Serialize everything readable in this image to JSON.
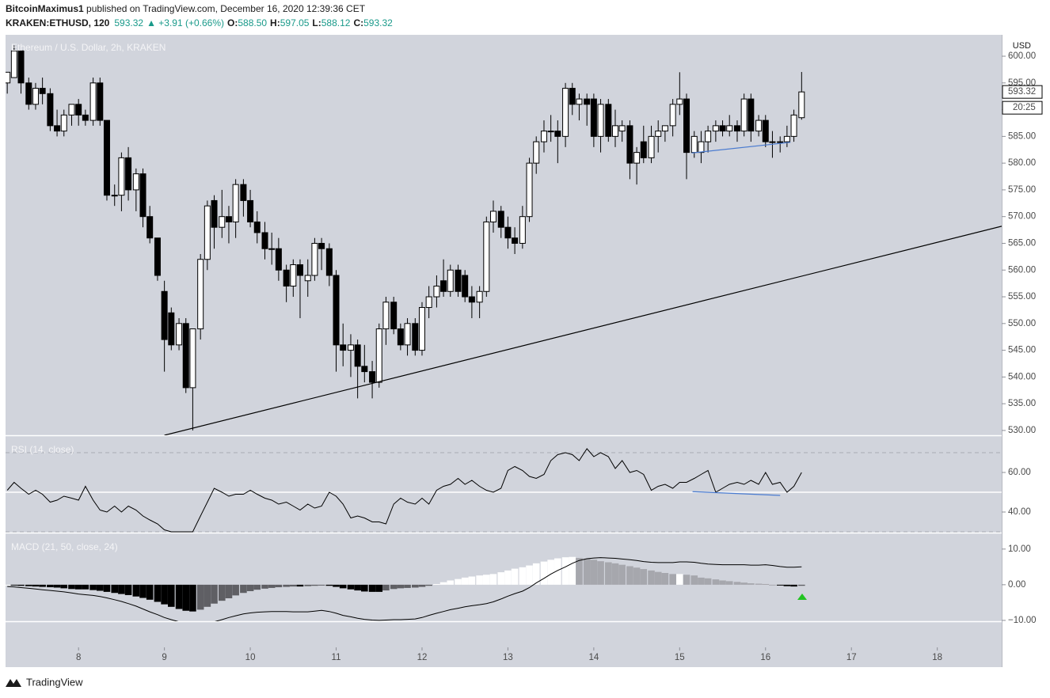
{
  "header": {
    "author": "BitcoinMaximus1",
    "published": " published on TradingView.com, December 16, 2020 12:39:36 CET",
    "symbol": "KRAKEN:ETHUSD, 120",
    "price": "593.32",
    "change": "▲ +3.91 (+0.66%)",
    "fields": [
      {
        "label": "O:",
        "value": "588.50"
      },
      {
        "label": "H:",
        "value": "597.05"
      },
      {
        "label": "L:",
        "value": "588.12"
      },
      {
        "label": "C:",
        "value": "593.32"
      }
    ]
  },
  "footer": {
    "brand": "TradingView"
  },
  "chart_data": {
    "type": "candlestick",
    "title": "Ethereum / U.S. Dollar, 2h, KRAKEN",
    "y_unit": "USD",
    "x": [
      7.17,
      7.25,
      7.33,
      7.42,
      7.5,
      7.58,
      7.67,
      7.75,
      7.83,
      7.92,
      8,
      8.08,
      8.17,
      8.25,
      8.33,
      8.42,
      8.5,
      8.58,
      8.67,
      8.75,
      8.83,
      8.92,
      9,
      9.08,
      9.17,
      9.25,
      9.33,
      9.42,
      9.5,
      9.58,
      9.67,
      9.75,
      9.83,
      9.92,
      10,
      10.08,
      10.17,
      10.25,
      10.33,
      10.42,
      10.5,
      10.58,
      10.67,
      10.75,
      10.83,
      10.92,
      11,
      11.08,
      11.17,
      11.25,
      11.33,
      11.42,
      11.5,
      11.58,
      11.67,
      11.75,
      11.83,
      11.92,
      12,
      12.08,
      12.17,
      12.25,
      12.33,
      12.42,
      12.5,
      12.58,
      12.67,
      12.75,
      12.83,
      12.92,
      13,
      13.08,
      13.17,
      13.25,
      13.33,
      13.42,
      13.5,
      13.58,
      13.67,
      13.75,
      13.83,
      13.92,
      14,
      14.08,
      14.17,
      14.25,
      14.33,
      14.42,
      14.5,
      14.58,
      14.67,
      14.75,
      14.83,
      14.92,
      15,
      15.08,
      15.17,
      15.25,
      15.33,
      15.42,
      15.5,
      15.58,
      15.67,
      15.75,
      15.83,
      15.92,
      16,
      16.08,
      16.17,
      16.25,
      16.33,
      16.42
    ],
    "open": [
      595,
      596,
      601,
      595,
      591,
      594,
      593,
      587,
      586,
      589,
      591,
      589,
      588,
      595,
      588,
      574,
      574,
      581,
      575,
      578,
      570,
      566,
      556,
      552,
      546,
      550,
      538,
      549,
      562,
      573,
      568,
      570,
      569,
      576,
      573,
      569,
      567,
      564,
      564,
      560,
      557,
      561,
      558,
      559,
      565,
      564,
      559,
      546,
      545,
      546,
      542,
      541,
      539,
      549,
      554,
      549,
      546,
      550,
      545,
      553,
      555,
      558,
      556,
      560,
      559,
      555,
      554,
      556,
      569,
      571,
      568,
      566,
      565,
      570,
      580,
      584,
      586,
      586,
      585,
      594,
      591,
      592,
      592,
      585,
      591,
      585,
      586,
      587,
      580,
      584,
      581,
      585,
      586,
      587,
      591,
      592,
      582,
      582,
      584,
      586,
      587,
      586,
      587,
      586,
      592,
      586,
      588,
      584,
      584,
      584,
      585,
      588.5
    ],
    "high": [
      597,
      602,
      601,
      596,
      595,
      596,
      594,
      590,
      590,
      591,
      592,
      590,
      596,
      596,
      588,
      576,
      582,
      583,
      579,
      579,
      572,
      566,
      558,
      553,
      551,
      551,
      549,
      563,
      573,
      574,
      575,
      572,
      577,
      577,
      575,
      571,
      569,
      567,
      566,
      561,
      562,
      562,
      562,
      566,
      566,
      565,
      560,
      550,
      548,
      547,
      546,
      543,
      550,
      555,
      555,
      550,
      551,
      551,
      554,
      557,
      559,
      562,
      561,
      561,
      560,
      557,
      557,
      570,
      573,
      572,
      570,
      568,
      572,
      581,
      585,
      588,
      589,
      588,
      595,
      595,
      593,
      593,
      593,
      592,
      592,
      590,
      588,
      588,
      583,
      587,
      587,
      588,
      587,
      592,
      597,
      593,
      586,
      586,
      587,
      588,
      588,
      589,
      588,
      593,
      593,
      589,
      589,
      586,
      585,
      587,
      590,
      597.05
    ],
    "low": [
      593,
      596,
      593,
      590,
      590,
      591,
      586,
      585,
      585,
      587,
      587,
      587,
      587,
      587,
      573,
      572,
      571,
      573,
      571,
      568,
      565,
      558,
      541,
      545,
      545,
      537,
      530,
      547,
      560,
      564,
      566,
      565,
      566,
      570,
      568,
      565,
      562,
      561,
      558,
      554,
      555,
      551,
      555,
      558,
      560,
      557,
      541,
      542,
      540,
      536,
      539,
      536,
      538,
      546,
      548,
      545,
      544,
      544,
      544,
      551,
      553,
      555,
      555,
      555,
      554,
      551,
      551,
      555,
      567,
      566,
      564,
      563,
      564,
      569,
      578,
      582,
      584,
      580,
      583,
      589,
      588,
      587,
      583,
      582,
      584,
      583,
      584,
      577,
      576,
      580,
      580,
      582,
      584,
      585,
      589,
      577,
      581,
      580,
      582,
      584,
      585,
      585,
      584,
      585,
      584,
      585,
      583,
      581,
      582,
      583,
      584,
      588.12
    ],
    "close": [
      597,
      601,
      595,
      591,
      594,
      593,
      587,
      586,
      589,
      591,
      589,
      588,
      595,
      588,
      574,
      574,
      581,
      575,
      578,
      570,
      566,
      559,
      547,
      546,
      550,
      538,
      549,
      562,
      572,
      568,
      570,
      569,
      576,
      573,
      569,
      567,
      564,
      564,
      560,
      557,
      561,
      559,
      559,
      565,
      564,
      559,
      546,
      545,
      546,
      542,
      541,
      539,
      549,
      554,
      549,
      546,
      550,
      545,
      553,
      555,
      557,
      556,
      560,
      556,
      555,
      554,
      556,
      569,
      571,
      568,
      566,
      565,
      570,
      580,
      584,
      586,
      586,
      585,
      594,
      591,
      592,
      591,
      585,
      591,
      585,
      587,
      587,
      580,
      582,
      581,
      585,
      586,
      587,
      591,
      592,
      582,
      585,
      584,
      586,
      587,
      586,
      587,
      586,
      592,
      586,
      588,
      584,
      584,
      584,
      585,
      589,
      593.32
    ],
    "up_color": "#ffffff",
    "down_color": "#000000",
    "xlim": [
      7.15,
      18.75
    ],
    "xticks": [
      8,
      9,
      10,
      11,
      12,
      13,
      14,
      15,
      16,
      17,
      18
    ],
    "ylim": [
      529.1,
      604
    ],
    "yticks": [
      {
        "value": 530,
        "label": "530.00"
      },
      {
        "value": 535,
        "label": "535.00"
      },
      {
        "value": 540,
        "label": "540.00"
      },
      {
        "value": 545,
        "label": "545.00"
      },
      {
        "value": 550,
        "label": "550.00"
      },
      {
        "value": 555,
        "label": "555.00"
      },
      {
        "value": 560,
        "label": "560.00"
      },
      {
        "value": 565,
        "label": "565.00"
      },
      {
        "value": 570,
        "label": "570.00"
      },
      {
        "value": 575,
        "label": "575.00"
      },
      {
        "value": 580,
        "label": "580.00"
      },
      {
        "value": 585,
        "label": "585.00"
      },
      {
        "value": 590,
        "label": "590.00"
      },
      {
        "value": 595,
        "label": "595.00"
      },
      {
        "value": 600,
        "label": "600.00"
      }
    ],
    "grid": false,
    "last_price": {
      "value": 593.32,
      "label": "593.32"
    },
    "countdown": "20:25",
    "trendlines": [
      {
        "x": [
          9.0,
          18.75
        ],
        "y": [
          529.1,
          568.2
        ],
        "color": "#000000"
      },
      {
        "x": [
          15.14,
          16.29
        ],
        "y": [
          581.9,
          583.9
        ],
        "color": "#4a7bd0"
      }
    ],
    "indicators": [
      {
        "type": "line",
        "title": "RSI (14, close)",
        "color": "#000000",
        "values": [
          51,
          55,
          52,
          49,
          51,
          49,
          45,
          46,
          48,
          47,
          46,
          53,
          46,
          41,
          40,
          43,
          40,
          43,
          41,
          38,
          36,
          34,
          31,
          30,
          30,
          30,
          30,
          38,
          45,
          52,
          50,
          48,
          49,
          49,
          51,
          49,
          47,
          46,
          44,
          45,
          43,
          41,
          44,
          42,
          43,
          50,
          48,
          44,
          37,
          38,
          37,
          35,
          35,
          34,
          44,
          47,
          45,
          44,
          47,
          44,
          51,
          53,
          54,
          57,
          54,
          56,
          53,
          51,
          50,
          52,
          61,
          63,
          61,
          58,
          57,
          59,
          66,
          69,
          70,
          69,
          66,
          72,
          68,
          70,
          68,
          62,
          66,
          60,
          61,
          59,
          51,
          53,
          54,
          52,
          55,
          55,
          57,
          59,
          61,
          50,
          52,
          54,
          55,
          54,
          56,
          54,
          60,
          54,
          55,
          50,
          53,
          60
        ],
        "ylim": [
          29.6,
          78.4
        ],
        "yticks": [
          {
            "value": 40,
            "label": "40.00"
          },
          {
            "value": 60,
            "label": "60.00"
          }
        ],
        "levels": [
          30,
          50,
          70
        ],
        "trendlines": [
          {
            "x": [
              15.15,
              16.17
            ],
            "y": [
              50.3,
              48.4
            ],
            "color": "#4a7bd0"
          }
        ]
      },
      {
        "type": "macd",
        "title": "MACD (21, 50, close, 24)",
        "color": "#000000",
        "histogram": [
          0,
          -0.2,
          -0.3,
          -0.4,
          -0.5,
          -0.6,
          -0.7,
          -0.8,
          -1.0,
          -1.2,
          -1.3,
          -1.3,
          -1.5,
          -1.7,
          -2.0,
          -2.3,
          -2.6,
          -2.9,
          -3.3,
          -3.7,
          -4.2,
          -4.8,
          -5.5,
          -6.2,
          -6.8,
          -7.3,
          -7.5,
          -7.0,
          -6.2,
          -5.3,
          -4.5,
          -3.8,
          -3.0,
          -2.3,
          -1.8,
          -1.4,
          -1.1,
          -0.9,
          -0.7,
          -0.6,
          -0.5,
          -0.5,
          -0.4,
          -0.3,
          -0.2,
          -0.3,
          -0.6,
          -1.0,
          -1.3,
          -1.6,
          -1.9,
          -2.0,
          -2.0,
          -1.6,
          -1.2,
          -1.0,
          -0.9,
          -0.8,
          -0.6,
          -0.3,
          0.2,
          0.7,
          1.2,
          1.6,
          2.0,
          2.3,
          2.6,
          2.8,
          3.0,
          3.5,
          4.0,
          4.5,
          4.9,
          5.4,
          6.0,
          6.5,
          7.0,
          7.4,
          7.7,
          7.8,
          7.5,
          7.3,
          7.0,
          6.6,
          6.3,
          6.0,
          5.6,
          5.2,
          4.8,
          4.4,
          4.0,
          3.6,
          3.3,
          3.0,
          3.0,
          2.8,
          2.6,
          2.0,
          1.8,
          1.5,
          1.2,
          1.0,
          0.8,
          0.6,
          0.4,
          0.3,
          0.2,
          0.0,
          -0.2,
          -0.4,
          -0.5,
          -0.3
        ],
        "macd": [
          -0.5,
          -0.6,
          -0.8,
          -1.0,
          -1.2,
          -1.4,
          -1.6,
          -1.8,
          -2.0,
          -2.3,
          -2.6,
          -2.8,
          -3.0,
          -3.3,
          -3.7,
          -4.2,
          -4.7,
          -5.3,
          -6.0,
          -6.8,
          -7.6,
          -8.4,
          -9.2,
          -9.8,
          -10.4,
          -11.0,
          -11.5,
          -11.4,
          -11.0,
          -10.4,
          -9.8,
          -9.2,
          -8.7,
          -8.2,
          -7.9,
          -7.7,
          -7.6,
          -7.5,
          -7.5,
          -7.5,
          -7.6,
          -7.6,
          -7.6,
          -7.4,
          -7.2,
          -7.5,
          -8.0,
          -8.6,
          -9.0,
          -9.4,
          -9.7,
          -9.9,
          -10.0,
          -9.9,
          -9.8,
          -9.8,
          -9.7,
          -9.6,
          -9.2,
          -8.6,
          -8.0,
          -7.5,
          -7.0,
          -6.6,
          -6.2,
          -5.9,
          -5.6,
          -5.3,
          -4.8,
          -4.0,
          -3.2,
          -2.5,
          -1.8,
          -0.8,
          0.5,
          1.8,
          3.0,
          4.0,
          5.0,
          6.0,
          6.8,
          7.3,
          7.5,
          7.6,
          7.5,
          7.4,
          7.2,
          7.0,
          6.8,
          6.5,
          6.3,
          6.2,
          6.2,
          6.2,
          6.4,
          6.4,
          6.3,
          6.0,
          5.8,
          5.7,
          5.6,
          5.6,
          5.6,
          5.6,
          5.5,
          5.5,
          5.6,
          5.4,
          5.1,
          4.9,
          4.9,
          5.0
        ],
        "hist_colors": {
          "neg_grow": "#000000",
          "neg_fall": "#5f5f64",
          "pos_grow": "#ffffff",
          "pos_fall": "#a6a7ad"
        },
        "ylim": [
          -16.9,
          14.4
        ],
        "yticks": [
          {
            "value": 10,
            "label": "10.00"
          },
          {
            "value": 0,
            "label": "0.00"
          },
          {
            "value": -10,
            "label": "−10.00"
          }
        ]
      }
    ]
  }
}
